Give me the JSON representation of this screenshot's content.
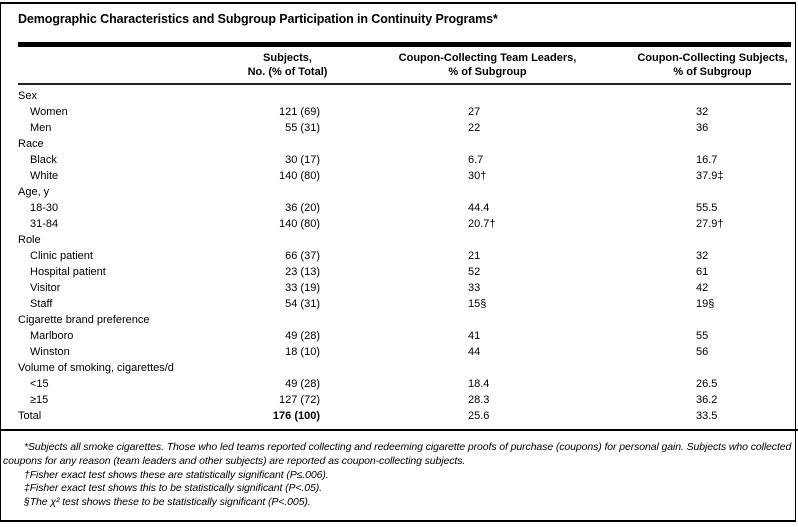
{
  "table": {
    "title": "Demographic Characteristics and Subgroup Participation in Continuity Programs*",
    "col_headers": [
      {
        "line1": "Subjects,",
        "line2": "No. (% of Total)"
      },
      {
        "line1": "Coupon-Collecting Team Leaders,",
        "line2": "% of Subgroup"
      },
      {
        "line1": "Coupon-Collecting Subjects,",
        "line2": "% of Subgroup"
      }
    ],
    "rows": [
      {
        "type": "group",
        "label": "Sex"
      },
      {
        "type": "item",
        "label": "Women",
        "subjects": "121 (69)",
        "leaders": "27",
        "collectors": "32"
      },
      {
        "type": "item",
        "label": "Men",
        "subjects": "55 (31)",
        "leaders": "22",
        "collectors": "36"
      },
      {
        "type": "group",
        "label": "Race"
      },
      {
        "type": "item",
        "label": "Black",
        "subjects": "30 (17)",
        "leaders": "6.7",
        "collectors": "16.7"
      },
      {
        "type": "item",
        "label": "White",
        "subjects": "140 (80)",
        "leaders": "30†",
        "collectors": "37.9‡"
      },
      {
        "type": "group",
        "label": "Age, y"
      },
      {
        "type": "item",
        "label": "18-30",
        "subjects": "36 (20)",
        "leaders": "44.4",
        "collectors": "55.5"
      },
      {
        "type": "item",
        "label": "31-84",
        "subjects": "140 (80)",
        "leaders": "20.7†",
        "collectors": "27.9†"
      },
      {
        "type": "group",
        "label": "Role"
      },
      {
        "type": "item",
        "label": "Clinic patient",
        "subjects": "66 (37)",
        "leaders": "21",
        "collectors": "32"
      },
      {
        "type": "item",
        "label": "Hospital patient",
        "subjects": "23 (13)",
        "leaders": "52",
        "collectors": "61"
      },
      {
        "type": "item",
        "label": "Visitor",
        "subjects": "33 (19)",
        "leaders": "33",
        "collectors": "42"
      },
      {
        "type": "item",
        "label": "Staff",
        "subjects": "54 (31)",
        "leaders": "15§",
        "collectors": "19§"
      },
      {
        "type": "group",
        "label": "Cigarette brand preference"
      },
      {
        "type": "item",
        "label": "Marlboro",
        "subjects": "49 (28)",
        "leaders": "41",
        "collectors": "55"
      },
      {
        "type": "item",
        "label": "Winston",
        "subjects": "18 (10)",
        "leaders": "44",
        "collectors": "56"
      },
      {
        "type": "group",
        "label": "Volume of smoking, cigarettes/d"
      },
      {
        "type": "item",
        "label": "<15",
        "subjects": "49 (28)",
        "leaders": "18.4",
        "collectors": "26.5"
      },
      {
        "type": "item",
        "label": "≥15",
        "subjects": "127 (72)",
        "leaders": "28.3",
        "collectors": "36.2"
      },
      {
        "type": "total",
        "label": "Total",
        "subjects": "176 (100)",
        "leaders": "25.6",
        "collectors": "33.5"
      }
    ],
    "footnotes": [
      "*Subjects all smoke cigarettes. Those who led teams reported collecting and redeeming cigarette proofs of purchase (coupons) for personal gain. Subjects who collected coupons for any reason (team leaders and other subjects) are reported as coupon-collecting subjects.",
      "†Fisher exact test shows these are statistically significant (P≤.006).",
      "‡Fisher exact test shows this to be statistically significant (P<.05).",
      "§The χ² test shows these to be statistically significant (P<.005)."
    ]
  }
}
